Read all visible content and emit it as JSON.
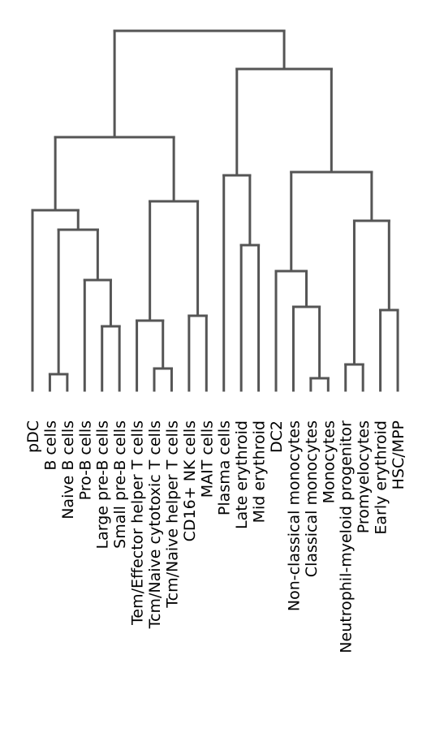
{
  "chart_data": {
    "type": "dendrogram",
    "orientation": "top-down",
    "line_color": "#555555",
    "leaves": [
      "pDC",
      "B cells",
      "Naive B cells",
      "Pro-B cells",
      "Large pre-B cells",
      "Small pre-B cells",
      "Tem/Effector helper T cells",
      "Tcm/Naive cytotoxic T cells",
      "Tcm/Naive helper T cells",
      "CD16+ NK cells",
      "MAIT cells",
      "Plasma cells",
      "Late erythroid",
      "Mid erythroid",
      "DC2",
      "Non-classical monocytes",
      "Classical monocytes",
      "Monocytes",
      "Neutrophil-myeloid progenitor",
      "Promyelocytes",
      "Early erythroid",
      "HSC/MPP"
    ],
    "merges": [
      {
        "id": "c1",
        "left": "L1",
        "right": "L2",
        "height": 0.04
      },
      {
        "id": "c2",
        "left": "L17",
        "right": "L18",
        "height": 0.03
      },
      {
        "id": "c3",
        "left": "L8",
        "right": "L9",
        "height": 0.06
      },
      {
        "id": "c4",
        "left": "L19",
        "right": "L20",
        "height": 0.07
      },
      {
        "id": "c5",
        "left": "L5",
        "right": "L6",
        "height": 0.18
      },
      {
        "id": "c6",
        "left": "c5",
        "right": "L4",
        "height": 0.31
      },
      {
        "id": "c7",
        "left": "L7",
        "right": "c3",
        "height": 0.19
      },
      {
        "id": "c8",
        "left": "L10",
        "right": "L11",
        "height": 0.2
      },
      {
        "id": "c9",
        "left": "c7",
        "right": "c8",
        "height": 0.53
      },
      {
        "id": "c10",
        "left": "L16",
        "right": "c2",
        "height": 0.23
      },
      {
        "id": "c11",
        "left": "L15",
        "right": "c10",
        "height": 0.34
      },
      {
        "id": "c12",
        "left": "L21",
        "right": "L22",
        "height": 0.22
      },
      {
        "id": "c13",
        "left": "c4",
        "right": "c12",
        "height": 0.47
      },
      {
        "id": "c14",
        "left": "c11",
        "right": "c13",
        "height": 0.61
      },
      {
        "id": "c15",
        "left": "L13",
        "right": "L14",
        "height": 0.41
      },
      {
        "id": "c16",
        "left": "L12",
        "right": "c15",
        "height": 0.6
      },
      {
        "id": "c17",
        "left": "c6",
        "right": "L3",
        "height": 0.44
      },
      {
        "id": "c18",
        "left": "c17",
        "right": "L1x",
        "height": 0.0
      },
      {
        "id": "c19",
        "left": "c17",
        "right": "c1",
        "height": 0.49
      },
      {
        "id": "c20",
        "left": "c19",
        "right": "c9",
        "height": 0.7
      },
      {
        "id": "c21",
        "left": "c16",
        "right": "c14",
        "height": 0.9
      },
      {
        "id": "c22",
        "left": "c20",
        "right": "c21",
        "height": 1.0
      }
    ]
  }
}
